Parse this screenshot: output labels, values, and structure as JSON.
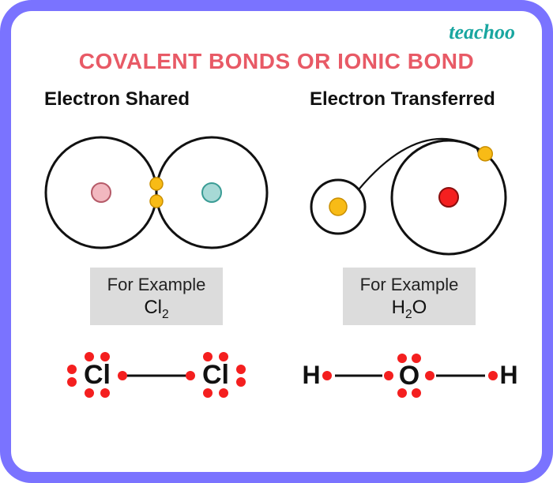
{
  "brand": "teachoo",
  "brand_color": "#19a6a0",
  "border_color": "#7a73ff",
  "title": "COVALENT BONDS OR IONIC BOND",
  "title_color": "#e85a66",
  "example_label": "For Example",
  "example_bg": "#dcdcdc",
  "dot_color": "#f41f1f",
  "bond_color": "#111111",
  "left": {
    "heading": "Electron Shared",
    "diagram": {
      "type": "covalent_shared",
      "shell_stroke": "#111111",
      "shell_stroke_width": 3,
      "circle_radius": 70,
      "left_center_fill": "#f2b8c0",
      "left_center_stroke": "#b55a68",
      "right_center_fill": "#a7d9d6",
      "right_center_stroke": "#3a9c95",
      "shared_electron_fill": "#f8bb16",
      "shared_electron_stroke": "#c98e00",
      "shared_electron_radius": 8
    },
    "formula_element": "Cl",
    "formula_sub": "2",
    "lewis": {
      "atom_label": "Cl",
      "dot_radius": 6
    }
  },
  "right": {
    "heading": "Electron Transferred",
    "diagram": {
      "type": "ionic_transfer",
      "shell_stroke": "#111111",
      "shell_stroke_width": 3,
      "small_radius": 34,
      "large_radius": 72,
      "small_center_fill": "#f8bb16",
      "small_center_stroke": "#c98e00",
      "large_center_fill": "#f41f1f",
      "large_center_stroke": "#8a0e0e",
      "electron_fill": "#f8bb16",
      "electron_stroke": "#c98e00",
      "electron_radius": 9,
      "arrow_color": "#111111"
    },
    "formula_element_left": "H",
    "formula_sub_left": "2",
    "formula_element_right": "O",
    "lewis": {
      "h_label": "H",
      "o_label": "O",
      "dot_radius": 6
    }
  }
}
